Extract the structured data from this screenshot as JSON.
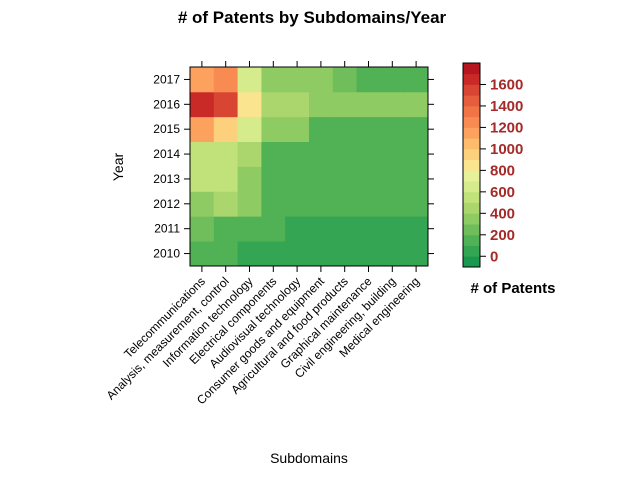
{
  "chart_data": {
    "type": "heatmap",
    "title": "# of Patents by Subdomains/Year",
    "xlabel": "Subdomains",
    "ylabel": "Year",
    "legend_title": "# of Patents",
    "x_categories": [
      "Telecommunications",
      "Analysis, measurement, control",
      "Information technology",
      "Electrical components",
      "Audiovisual technology",
      "Consumer goods and equipment",
      "Agricultural and food products",
      "Graphical maintenance",
      "Civil engineering, building",
      "Medical engineering"
    ],
    "y_categories": [
      "2010",
      "2011",
      "2012",
      "2013",
      "2014",
      "2015",
      "2016",
      "2017"
    ],
    "values": [
      [
        110,
        100,
        90,
        90,
        90,
        20,
        20,
        90,
        20,
        90
      ],
      [
        230,
        120,
        110,
        100,
        90,
        90,
        90,
        90,
        90,
        90
      ],
      [
        330,
        430,
        370,
        120,
        110,
        100,
        100,
        100,
        100,
        100
      ],
      [
        520,
        500,
        380,
        120,
        110,
        100,
        100,
        100,
        100,
        100
      ],
      [
        580,
        560,
        400,
        130,
        110,
        100,
        100,
        100,
        100,
        100
      ],
      [
        1180,
        900,
        650,
        330,
        300,
        110,
        100,
        100,
        100,
        100
      ],
      [
        1680,
        1530,
        830,
        470,
        450,
        350,
        330,
        320,
        310,
        300
      ],
      [
        1180,
        1230,
        660,
        370,
        330,
        300,
        280,
        110,
        100,
        100
      ]
    ],
    "colorbar": {
      "range": [
        -100,
        1800
      ],
      "step": 100,
      "ticks": [
        0,
        200,
        400,
        600,
        800,
        1000,
        1200,
        1400,
        1600
      ],
      "colors": [
        "#1a9850",
        "#34a552",
        "#50b155",
        "#6fbe5b",
        "#8fcb63",
        "#aad66d",
        "#c1e17a",
        "#d6eb8b",
        "#e7f19a",
        "#fbe490",
        "#fdd07d",
        "#fdbb6c",
        "#fca15e",
        "#f88b51",
        "#f07446",
        "#e55d3c",
        "#d94533",
        "#c92a27",
        "#b5161f"
      ]
    }
  }
}
